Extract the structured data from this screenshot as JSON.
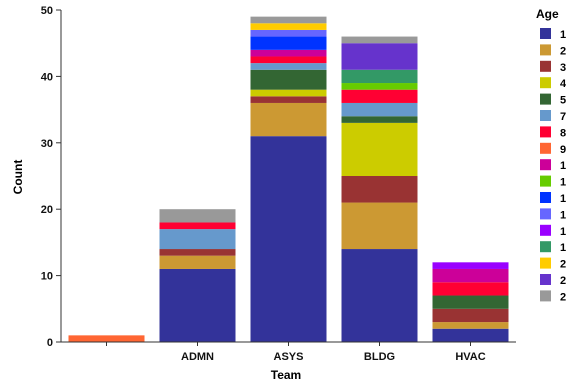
{
  "chart_data": {
    "type": "bar",
    "stacked": true,
    "categories": [
      "",
      "ADMN",
      "ASYS",
      "BLDG",
      "HVAC"
    ],
    "xlabel": "Team",
    "ylabel": "Count",
    "ylim": [
      0,
      50
    ],
    "yticks": [
      0,
      10,
      20,
      30,
      40,
      50
    ],
    "grid": false,
    "legend": {
      "title": "Age",
      "placement": "right"
    },
    "series": [
      {
        "name": "1",
        "color": "#33339a",
        "values": [
          0,
          11,
          31,
          14,
          2
        ]
      },
      {
        "name": "2",
        "color": "#cc9933",
        "values": [
          0,
          2,
          5,
          7,
          1
        ]
      },
      {
        "name": "3",
        "color": "#993333",
        "values": [
          0,
          1,
          1,
          4,
          2
        ]
      },
      {
        "name": "4",
        "color": "#cccc00",
        "values": [
          0,
          0,
          1,
          8,
          0
        ]
      },
      {
        "name": "5",
        "color": "#336633",
        "values": [
          0,
          0,
          3,
          1,
          2
        ]
      },
      {
        "name": "7",
        "color": "#6699cc",
        "values": [
          0,
          3,
          1,
          2,
          0
        ]
      },
      {
        "name": "8",
        "color": "#ff0033",
        "values": [
          0,
          1,
          1,
          2,
          2
        ]
      },
      {
        "name": "9",
        "color": "#ff6633",
        "values": [
          1,
          0,
          0,
          0,
          0
        ]
      },
      {
        "name": "1",
        "color": "#cc0099",
        "values": [
          0,
          0,
          1,
          0,
          2
        ]
      },
      {
        "name": "1",
        "color": "#66cc00",
        "values": [
          0,
          0,
          0,
          1,
          0
        ]
      },
      {
        "name": "1",
        "color": "#0033ff",
        "values": [
          0,
          0,
          2,
          0,
          0
        ]
      },
      {
        "name": "1",
        "color": "#6666ff",
        "values": [
          0,
          0,
          1,
          0,
          0
        ]
      },
      {
        "name": "1",
        "color": "#9900ff",
        "values": [
          0,
          0,
          0,
          0,
          1
        ]
      },
      {
        "name": "1",
        "color": "#339966",
        "values": [
          0,
          0,
          0,
          2,
          0
        ]
      },
      {
        "name": "2",
        "color": "#ffcc00",
        "values": [
          0,
          0,
          1,
          0,
          0
        ]
      },
      {
        "name": "2",
        "color": "#6633cc",
        "values": [
          0,
          0,
          0,
          4,
          0
        ]
      },
      {
        "name": "2",
        "color": "#999999",
        "values": [
          0,
          2,
          1,
          1,
          0
        ]
      }
    ]
  }
}
